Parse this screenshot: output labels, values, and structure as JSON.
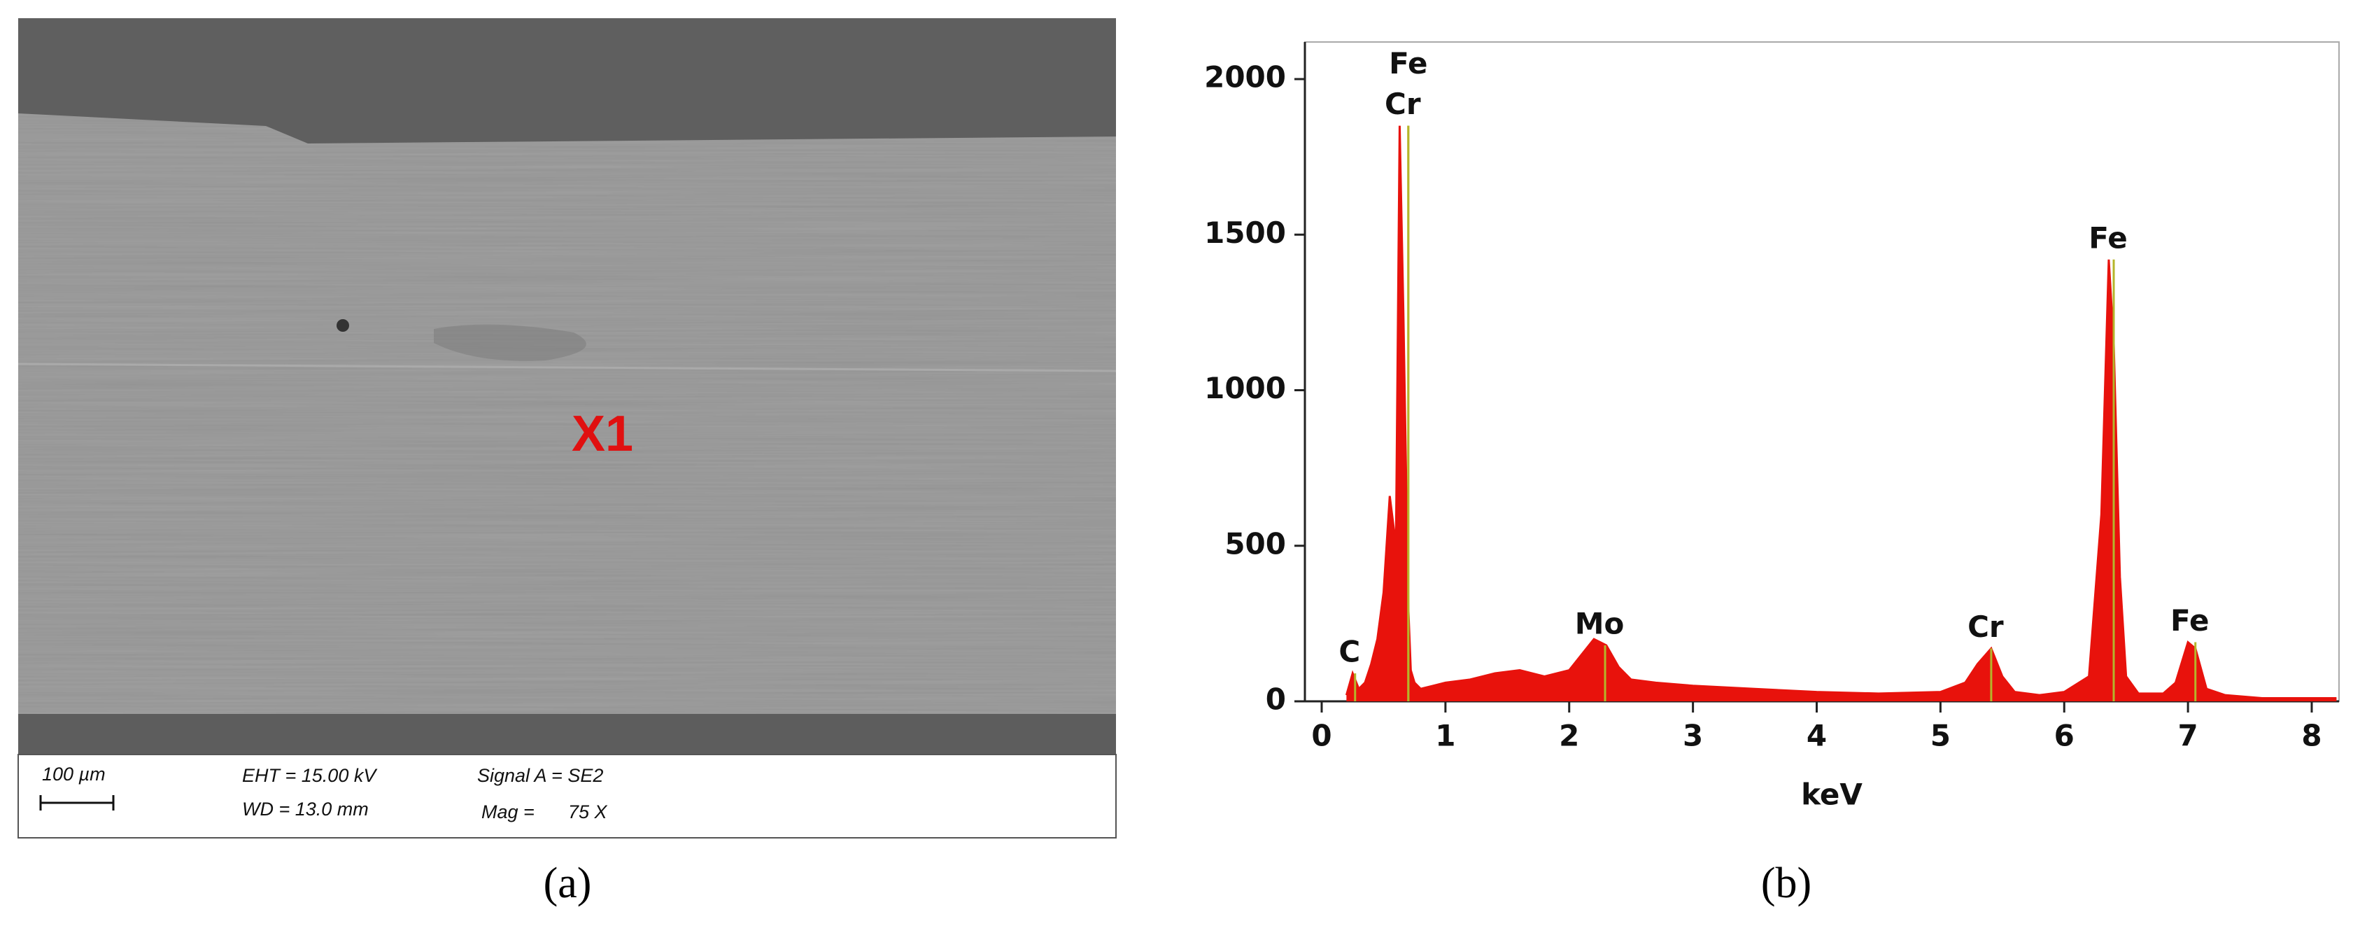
{
  "sem": {
    "label": "X1",
    "scale_bar": "100 µm",
    "eht": "EHT = 15.00 kV",
    "wd": "WD = 13.0 mm",
    "signal": "Signal A = SE2",
    "mag": "Mag =",
    "mag_value": "75 X"
  },
  "panel_labels": [
    "(a)",
    "(b)"
  ],
  "chart_data": {
    "type": "area",
    "x_label": "keV",
    "color": "#e8120c",
    "marker_color": "#b5b52a",
    "x": [
      0.2,
      0.25,
      0.3,
      0.35,
      0.4,
      0.45,
      0.5,
      0.55,
      0.6,
      0.63,
      0.66,
      0.7,
      0.72,
      0.75,
      0.8,
      0.9,
      1.0,
      1.2,
      1.4,
      1.6,
      1.8,
      2.0,
      2.1,
      2.2,
      2.3,
      2.4,
      2.5,
      2.7,
      3.0,
      3.5,
      4.0,
      4.5,
      5.0,
      5.2,
      5.3,
      5.41,
      5.5,
      5.6,
      5.8,
      6.0,
      6.2,
      6.3,
      6.36,
      6.4,
      6.45,
      6.5,
      6.6,
      6.8,
      6.9,
      7.0,
      7.06,
      7.15,
      7.3,
      7.6,
      8.0,
      8.2
    ],
    "values": [
      20,
      90,
      40,
      60,
      120,
      200,
      350,
      660,
      500,
      1850,
      1250,
      300,
      100,
      60,
      40,
      50,
      60,
      70,
      90,
      100,
      80,
      100,
      150,
      200,
      180,
      110,
      70,
      60,
      50,
      40,
      30,
      25,
      30,
      60,
      120,
      170,
      80,
      30,
      20,
      30,
      80,
      600,
      1420,
      1150,
      400,
      80,
      25,
      25,
      60,
      190,
      170,
      40,
      20,
      10,
      10,
      10
    ],
    "annotations": [
      {
        "text": "C",
        "x": 0.27
      },
      {
        "text": "Cr",
        "x": 0.7
      },
      {
        "text": "Fe",
        "x": 0.7
      },
      {
        "text": "Mo",
        "x": 2.29
      },
      {
        "text": "Cr",
        "x": 5.41
      },
      {
        "text": "Fe",
        "x": 6.4
      },
      {
        "text": "Fe",
        "x": 7.06
      }
    ],
    "xlim": [
      0,
      8.2
    ],
    "ylim": [
      0,
      2100
    ],
    "xticks": [
      0,
      1,
      2,
      3,
      4,
      5,
      6,
      7,
      8
    ],
    "yticks": [
      0,
      500,
      1000,
      1500,
      2000
    ]
  }
}
